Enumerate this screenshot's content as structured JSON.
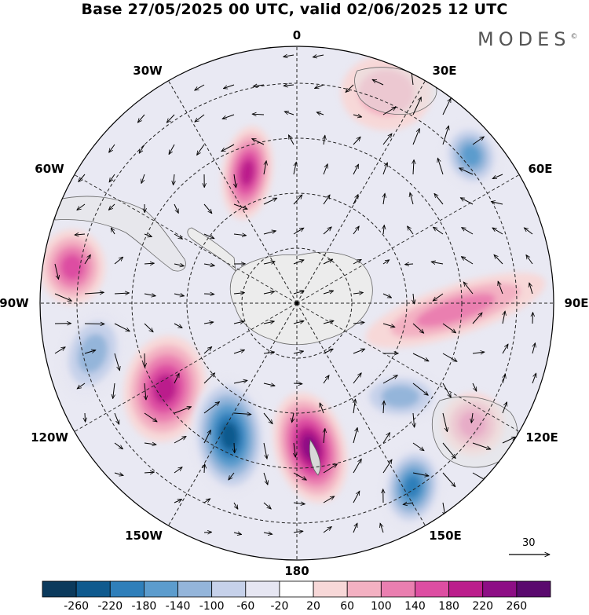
{
  "title": "Base 27/05/2025 00 UTC, valid 02/06/2025 12 UTC",
  "brand": "MODES",
  "brand_mark": "©",
  "longitude_labels": {
    "lon_0": "0",
    "lon_30e": "30E",
    "lon_60e": "60E",
    "lon_90e": "90E",
    "lon_120e": "120E",
    "lon_150e": "150E",
    "lon_180": "180",
    "lon_150w": "150W",
    "lon_120w": "120W",
    "lon_90w": "90W",
    "lon_60w": "60W",
    "lon_30w": "30W"
  },
  "vector_reference": "30",
  "colorbar": {
    "labels": [
      "-260",
      "-220",
      "-180",
      "-140",
      "-100",
      "-60",
      "-20",
      "20",
      "60",
      "100",
      "140",
      "180",
      "220",
      "260"
    ],
    "colors": [
      "#0b3a5c",
      "#0f5a8e",
      "#2f7fba",
      "#5c9ccd",
      "#94b5da",
      "#c6d1ea",
      "#e6e6f2",
      "#ffffff",
      "#f7d8d8",
      "#f3b1c2",
      "#ea7fb0",
      "#dd4ea2",
      "#bb1e8c",
      "#8d0e85",
      "#5a0a6e"
    ]
  },
  "map": {
    "projection": "south-polar-stereographic",
    "land_color": "#e8e8e8",
    "anomalies": [
      {
        "label": "high-30E",
        "sign": "positive",
        "magnitude": 80
      },
      {
        "label": "low-50E",
        "sign": "negative",
        "magnitude": 160
      },
      {
        "label": "high-15W",
        "sign": "positive",
        "magnitude": 180
      },
      {
        "label": "high-80W",
        "sign": "positive",
        "magnitude": 140
      },
      {
        "label": "low-105W",
        "sign": "negative",
        "magnitude": 130
      },
      {
        "label": "high-135W",
        "sign": "positive",
        "magnitude": 200
      },
      {
        "label": "low-155W",
        "sign": "negative",
        "magnitude": 250
      },
      {
        "label": "high-175E",
        "sign": "positive",
        "magnitude": 240
      },
      {
        "label": "low-145E",
        "sign": "negative",
        "magnitude": 180
      },
      {
        "label": "high-115E",
        "sign": "positive",
        "magnitude": 120
      },
      {
        "label": "band-95E",
        "sign": "positive",
        "magnitude": 120
      },
      {
        "label": "low-110E",
        "sign": "negative",
        "magnitude": 100
      }
    ]
  }
}
